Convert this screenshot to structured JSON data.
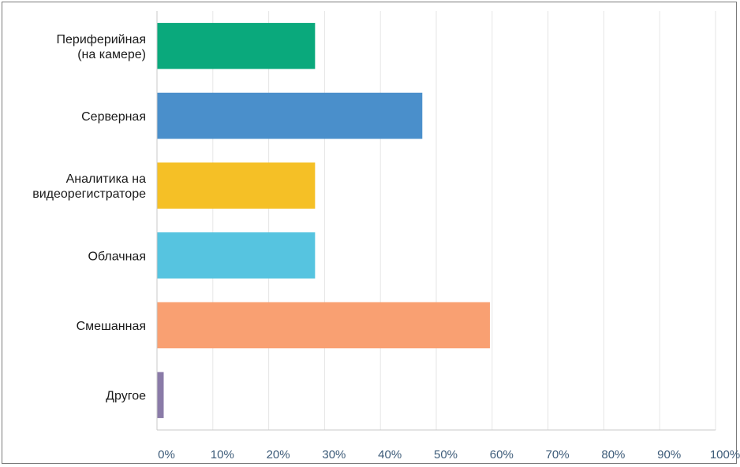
{
  "chart_data": {
    "type": "bar",
    "orientation": "horizontal",
    "categories": [
      [
        "Периферийная",
        "(на камере)"
      ],
      [
        "Серверная"
      ],
      [
        "Аналитика на",
        "видеорегистраторе"
      ],
      [
        "Облачная"
      ],
      [
        "Смешанная"
      ],
      [
        "Другое"
      ]
    ],
    "values": [
      28.3,
      47.5,
      28.3,
      28.3,
      59.6,
      1.2
    ],
    "colors": [
      "#0aa97c",
      "#4a8fcb",
      "#f5c026",
      "#56c4e0",
      "#f9a072",
      "#8a7ba8"
    ],
    "xlim": [
      0,
      100
    ],
    "ticks": [
      "0%",
      "10%",
      "20%",
      "30%",
      "40%",
      "50%",
      "60%",
      "70%",
      "80%",
      "90%",
      "100%"
    ],
    "tick_values": [
      0,
      10,
      20,
      30,
      40,
      50,
      60,
      70,
      80,
      90,
      100
    ],
    "grid": true,
    "title": "",
    "xlabel": "",
    "ylabel": ""
  }
}
